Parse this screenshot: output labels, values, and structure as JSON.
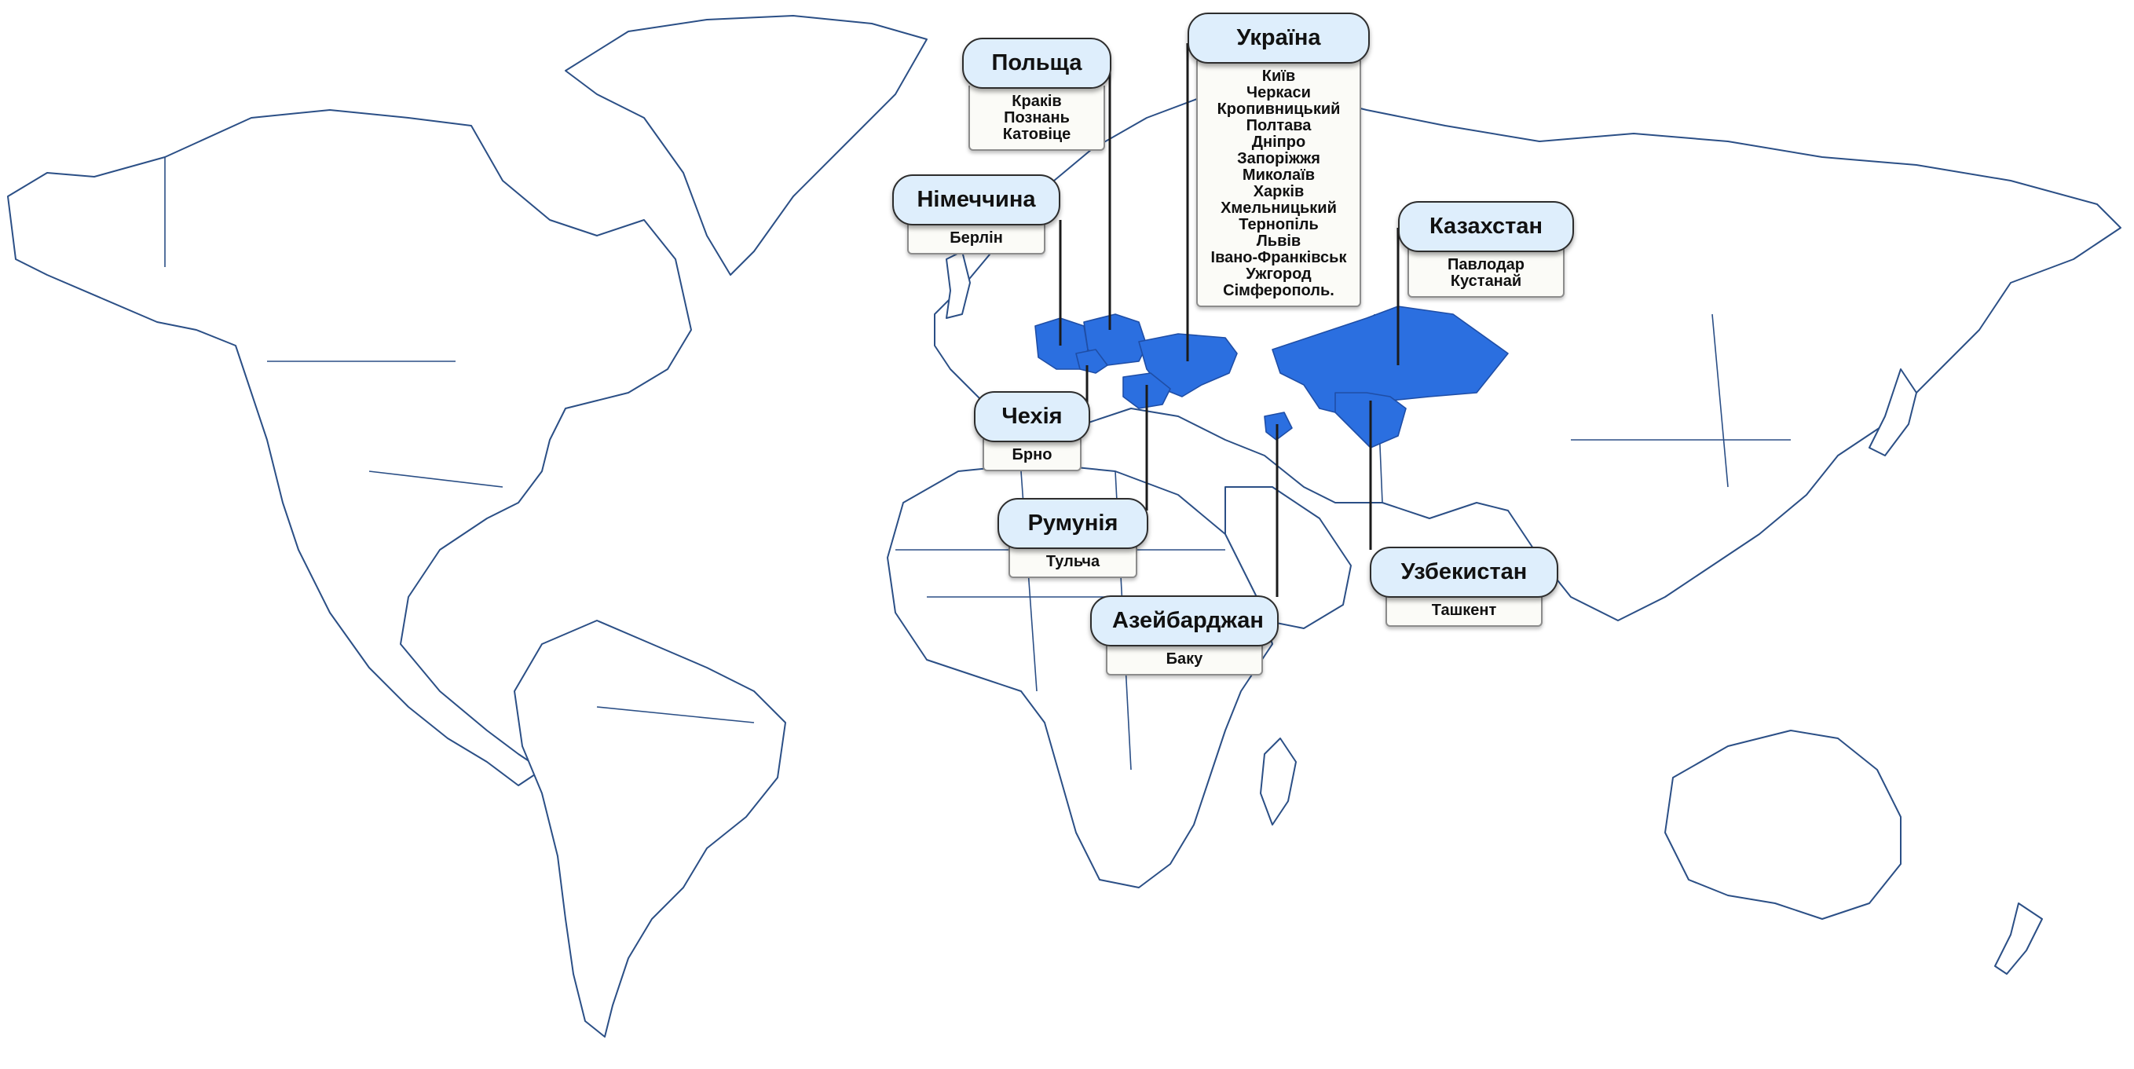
{
  "map": {
    "style": "world outline map",
    "line_color": "#2b4f86",
    "highlight_color": "#2b6fe0"
  },
  "countries": [
    {
      "id": "poland",
      "name": "Польща",
      "cities": [
        "Краків",
        "Познань",
        "Катовіце"
      ]
    },
    {
      "id": "ukraine",
      "name": "Україна",
      "cities": [
        "Київ",
        "Черкаси",
        "Кропивницький",
        "Полтава",
        "Дніпро",
        "Запоріжжя",
        "Миколаїв",
        "Харків",
        "Хмельницький",
        "Тернопіль",
        "Львів",
        "Івано-Франківськ",
        "Ужгород",
        "Сімферополь."
      ]
    },
    {
      "id": "germany",
      "name": "Німеччина",
      "cities": [
        "Берлін"
      ]
    },
    {
      "id": "kazakhstan",
      "name": "Казахстан",
      "cities": [
        "Павлодар",
        "Кустанай"
      ]
    },
    {
      "id": "czechia",
      "name": "Чехія",
      "cities": [
        "Брно"
      ]
    },
    {
      "id": "romania",
      "name": "Румунія",
      "cities": [
        "Тульча"
      ]
    },
    {
      "id": "uzbekistan",
      "name": "Узбекистан",
      "cities": [
        "Ташкент"
      ]
    },
    {
      "id": "azerbaijan",
      "name": "Азейбарджан",
      "cities": [
        "Баку"
      ]
    }
  ]
}
